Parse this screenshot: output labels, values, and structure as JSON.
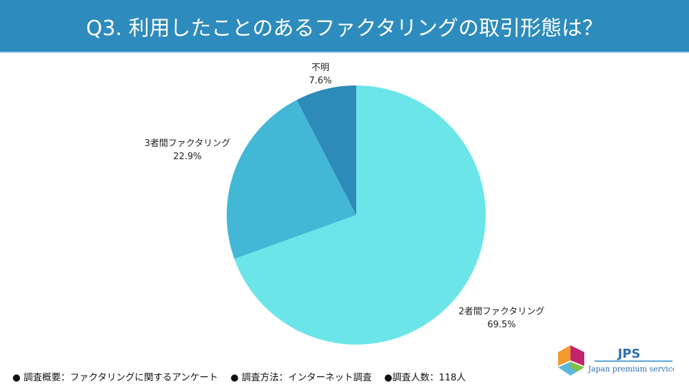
{
  "header": {
    "title": "Q3. 利用したことのあるファクタリングの取引形態は？"
  },
  "chart_data": {
    "type": "pie",
    "title": "Q3. 利用したことのあるファクタリングの取引形態は？",
    "start": "top",
    "direction": "clockwise",
    "slices": [
      {
        "label": "2者間ファクタリング",
        "value": 69.5,
        "value_label": "69.5%",
        "color": "#6ce5e8"
      },
      {
        "label": "3者間ファクタリング",
        "value": 22.9,
        "value_label": "22.9%",
        "color": "#42b8d6"
      },
      {
        "label": "不明",
        "value": 7.6,
        "value_label": "7.6%",
        "color": "#2e8ab9"
      }
    ]
  },
  "footer": {
    "items": [
      "● 調査概要：ファクタリングに関するアンケート",
      "● 調査方法：インターネット調査",
      "●調査人数：118人"
    ]
  },
  "logo": {
    "name": "JPS",
    "tagline": "Japan premium service"
  }
}
